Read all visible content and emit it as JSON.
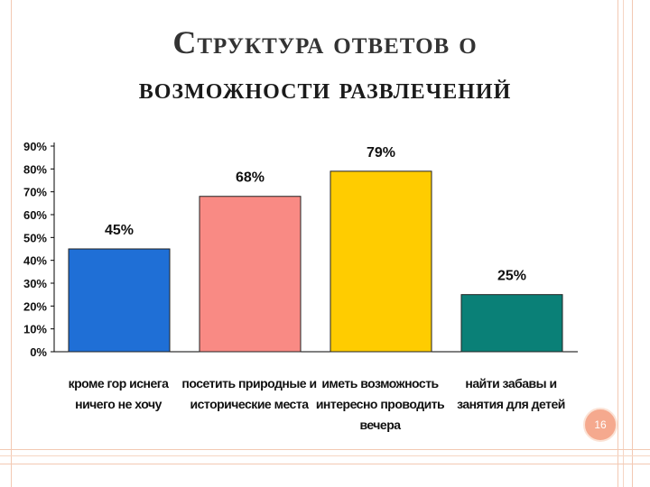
{
  "slide": {
    "title_line1": "Структура ответов о",
    "title_line2": "возможности развлечений",
    "page_number": "16"
  },
  "colors": {
    "bar1": "#1f6fd6",
    "bar2": "#f98a84",
    "bar3": "#ffcc00",
    "bar4": "#0a8077",
    "accent_lines": "#f3c9b3"
  },
  "chart_data": {
    "type": "bar",
    "categories": [
      "кроме гор иснега ничего не хочу",
      "посетить природные и исторические места",
      "иметь возможность интересно проводить вечера",
      "найти забавы и занятия для детей"
    ],
    "values": [
      45,
      68,
      79,
      25
    ],
    "value_labels": [
      "45%",
      "68%",
      "79%",
      "25%"
    ],
    "yticks": [
      "0%",
      "10%",
      "20%",
      "30%",
      "40%",
      "50%",
      "60%",
      "70%",
      "80%",
      "90%"
    ],
    "ylim": [
      0,
      90
    ],
    "grid": false
  }
}
